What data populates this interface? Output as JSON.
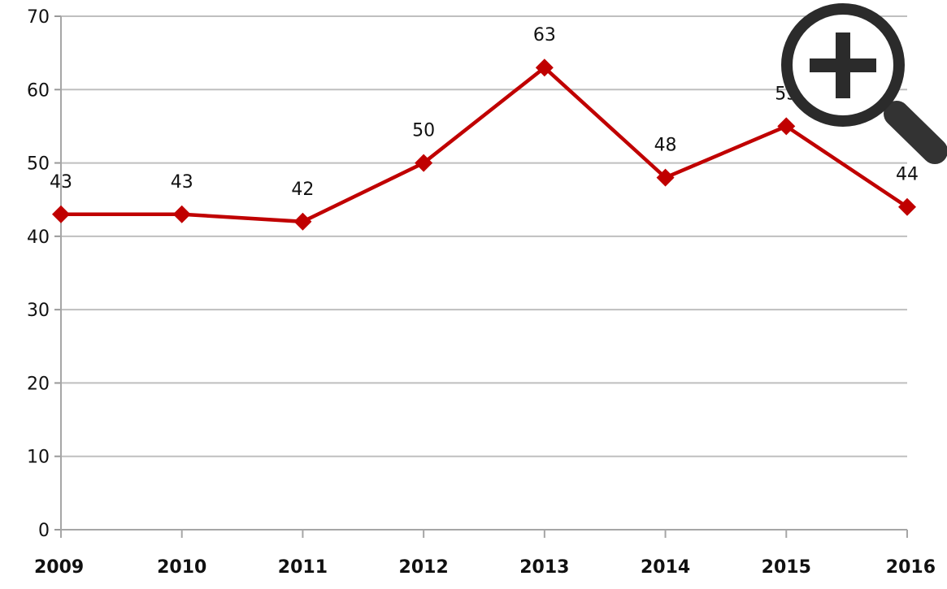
{
  "chart_data": {
    "type": "line",
    "title": "",
    "xlabel": "",
    "ylabel": "",
    "categories": [
      "2009",
      "2010",
      "2011",
      "2012",
      "2013",
      "2014",
      "2015",
      "2016"
    ],
    "series": [
      {
        "values": [
          43,
          43,
          42,
          50,
          63,
          48,
          55,
          44
        ]
      }
    ],
    "data_labels": [
      "43",
      "43",
      "42",
      "50",
      "63",
      "48",
      "55",
      "44"
    ],
    "ylim": [
      0,
      70
    ],
    "yticks": [
      "0",
      "10",
      "20",
      "30",
      "40",
      "50",
      "60",
      "70"
    ],
    "grid": true,
    "legend": "none",
    "marker": "diamond",
    "line_color": "#c00000",
    "grid_color": "#bfbfbf"
  },
  "controls": {
    "zoom_icon": "magnifier-plus-icon"
  }
}
